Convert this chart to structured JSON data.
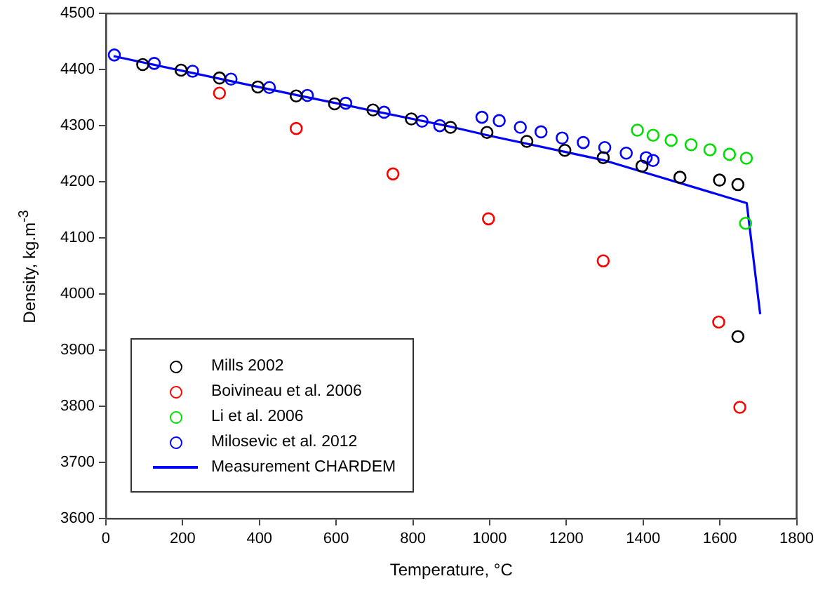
{
  "chart_data": {
    "type": "scatter",
    "xlabel": "Temperature, °C",
    "ylabel": "Density, kg.m$^{-3}$",
    "xlim": [
      0,
      1800
    ],
    "xticks": [
      0,
      200,
      400,
      600,
      800,
      1000,
      1200,
      1400,
      1600,
      1800
    ],
    "ylim": [
      3600,
      4500
    ],
    "yticks": [
      3600,
      3700,
      3800,
      3900,
      4000,
      4100,
      4200,
      4300,
      4400,
      4500
    ],
    "grid": false,
    "legend": "bottom left",
    "marker": "circle",
    "series": [
      {
        "name": "Mills 2002",
        "color": "#000000",
        "x": [
          96,
          196,
          296,
          396,
          496,
          596,
          696,
          796,
          898,
          993,
          1097,
          1196,
          1296,
          1397,
          1496,
          1599,
          1647,
          1647
        ],
        "values": [
          4409,
          4399,
          4385,
          4369,
          4353,
          4339,
          4328,
          4312,
          4297,
          4288,
          4272,
          4256,
          4243,
          4228,
          4208,
          4203,
          4195,
          3924
        ]
      },
      {
        "name": "Boivineau et al. 2006",
        "color": "#ff0000",
        "x": [
          296,
          496,
          748,
          997,
          1296,
          1597,
          1652
        ],
        "values": [
          4358,
          4295,
          4214,
          4134,
          4059,
          3950,
          3798
        ]
      },
      {
        "name": "Li et al. 2006",
        "color": "#00dd00",
        "x": [
          1385,
          1426,
          1473,
          1525,
          1574,
          1625,
          1669,
          1667
        ],
        "values": [
          4292,
          4283,
          4274,
          4266,
          4257,
          4249,
          4242,
          4126
        ]
      },
      {
        "name": "Milosevic et al. 2012",
        "color": "#0000ff",
        "x": [
          22,
          126,
          226,
          326,
          426,
          525,
          625,
          725,
          824,
          870,
          980,
          1025,
          1080,
          1134,
          1189,
          1244,
          1300,
          1356,
          1408,
          1426
        ],
        "values": [
          4426,
          4411,
          4397,
          4383,
          4368,
          4354,
          4340,
          4324,
          4308,
          4300,
          4315,
          4309,
          4297,
          4289,
          4278,
          4270,
          4261,
          4251,
          4243,
          4238
        ]
      },
      {
        "name": "Measurement CHARDEM",
        "type": "line",
        "color": "#0000ff",
        "marker": "none",
        "line_style": "solid",
        "x": [
          20,
          500,
          900,
          1000,
          1300,
          1670,
          1705
        ],
        "values": [
          4424,
          4354,
          4298,
          4282,
          4238,
          4162,
          3964
        ]
      }
    ]
  }
}
